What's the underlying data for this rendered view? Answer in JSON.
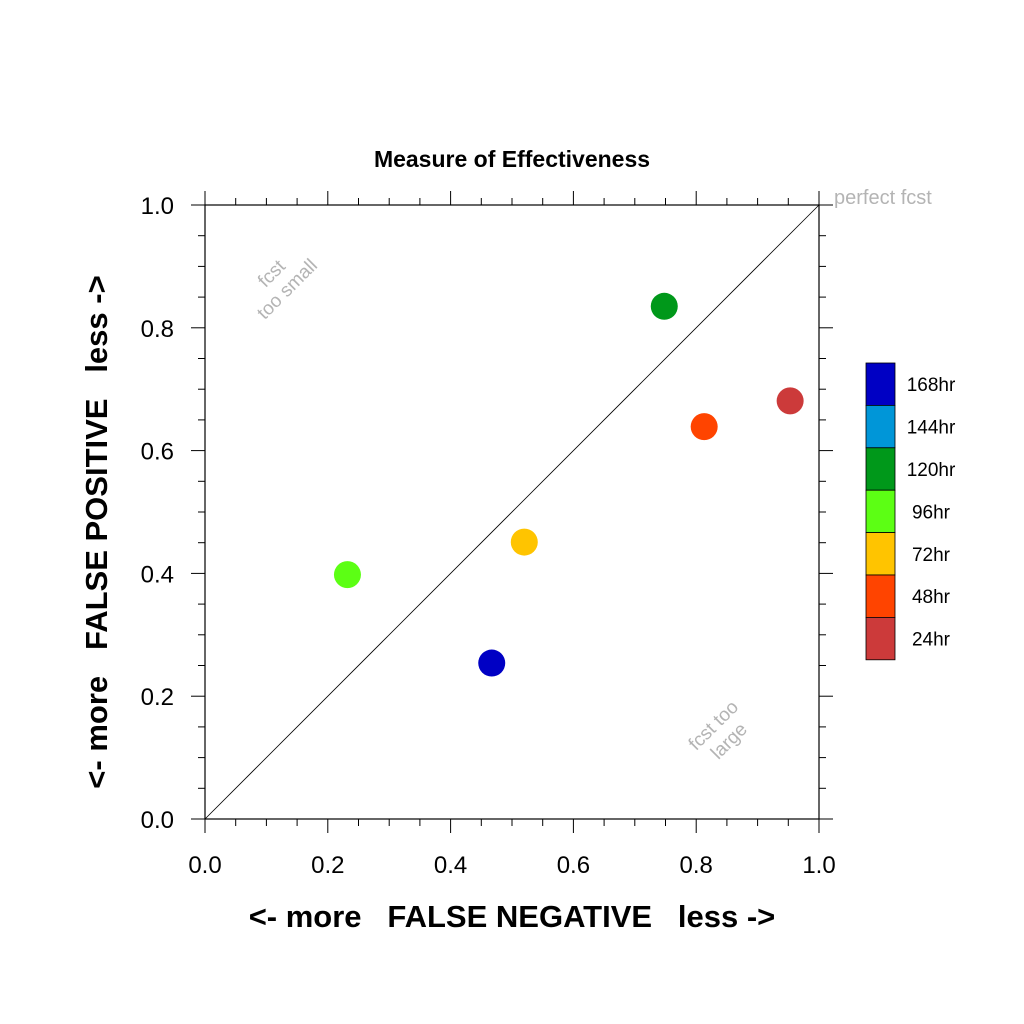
{
  "chart_data": {
    "type": "scatter",
    "title": "Measure of Effectiveness",
    "xlabel": "<- more   FALSE NEGATIVE   less ->",
    "ylabel": "<- more   FALSE POSITIVE   less ->",
    "xlim": [
      0.0,
      1.0
    ],
    "ylim": [
      0.0,
      1.0
    ],
    "xticks": [
      "0.0",
      "0.2",
      "0.4",
      "0.6",
      "0.8",
      "1.0"
    ],
    "yticks": [
      "0.0",
      "0.2",
      "0.4",
      "0.6",
      "0.8",
      "1.0"
    ],
    "grid": false,
    "reference_line": "diagonal",
    "annotations": {
      "perfect": "perfect fcst",
      "small_line1": "fcst",
      "small_line2": "too small",
      "large_line1": "fcst too",
      "large_line2": "large"
    },
    "legend_position": "right",
    "legend": [
      {
        "label": "168hr",
        "color": "#0000c4"
      },
      {
        "label": "144hr",
        "color": "#0096d8"
      },
      {
        "label": "120hr",
        "color": "#00981a"
      },
      {
        "label": "96hr",
        "color": "#5cff14"
      },
      {
        "label": "72hr",
        "color": "#ffc400"
      },
      {
        "label": "48hr",
        "color": "#ff4400"
      },
      {
        "label": "24hr",
        "color": "#cc3a3a"
      }
    ],
    "points": [
      {
        "series": "168hr",
        "x": 0.467,
        "y": 0.254,
        "color": "#0000c4"
      },
      {
        "series": "120hr",
        "x": 0.748,
        "y": 0.835,
        "color": "#00981a"
      },
      {
        "series": "96hr",
        "x": 0.232,
        "y": 0.398,
        "color": "#5cff14"
      },
      {
        "series": "72hr",
        "x": 0.52,
        "y": 0.451,
        "color": "#ffc400"
      },
      {
        "series": "48hr",
        "x": 0.813,
        "y": 0.639,
        "color": "#ff4400"
      },
      {
        "series": "24hr",
        "x": 0.953,
        "y": 0.681,
        "color": "#cc3a3a"
      }
    ]
  }
}
